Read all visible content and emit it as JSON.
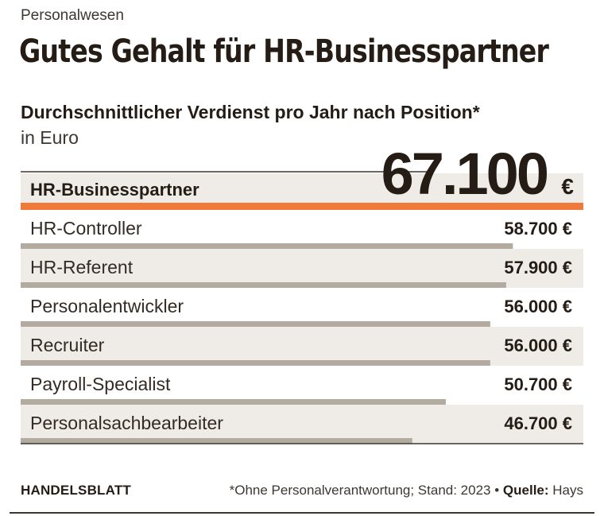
{
  "kicker": "Personalwesen",
  "title": "Gutes Gehalt für HR-Businesspartner",
  "colors": {
    "highlight": "#f07a3a",
    "bar": "#b3aba0",
    "row_band": "#efece8",
    "text": "#241c15"
  },
  "chart_data": {
    "type": "bar",
    "orientation": "horizontal",
    "title": "Durchschnittlicher Verdienst pro Jahr nach Position*",
    "unit_label": "in Euro",
    "xlim": [
      0,
      67100
    ],
    "categories": [
      "HR-Businesspartner",
      "HR-Controller",
      "HR-Referent",
      "Personalentwickler",
      "Recruiter",
      "Payroll-Specialist",
      "Personalsachbearbeiter"
    ],
    "values": [
      67100,
      58700,
      57900,
      56000,
      56000,
      50700,
      46700
    ],
    "value_labels": [
      "67.100",
      "58.700 €",
      "57.900 €",
      "56.000 €",
      "56.000 €",
      "50.700 €",
      "46.700 €"
    ],
    "highlight_currency": "€",
    "highlight_index": 0
  },
  "footer": {
    "brand": "HANDELSBLATT",
    "note": "*Ohne Personalverantwortung; Stand: 2023 •",
    "source_label": "Quelle:",
    "source": "Hays"
  }
}
